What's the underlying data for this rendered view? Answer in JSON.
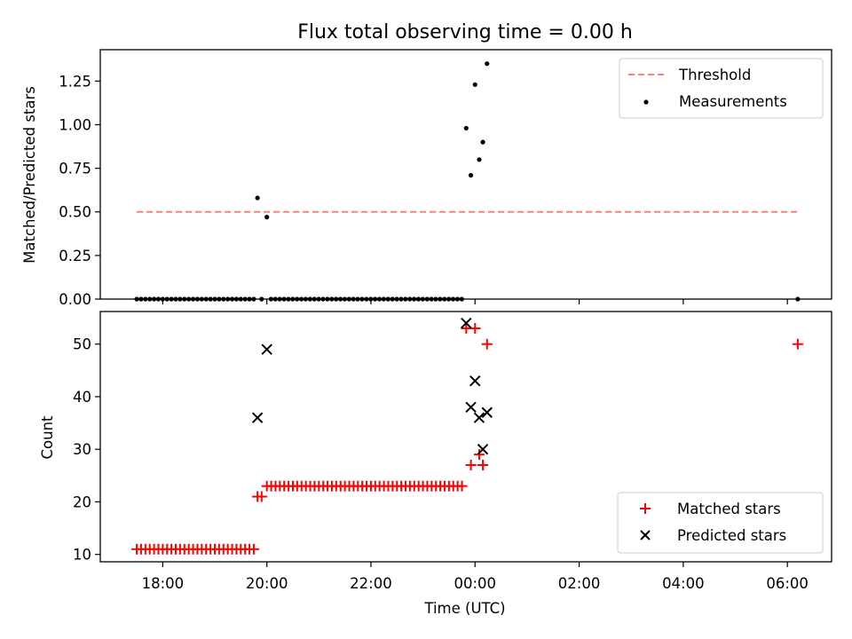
{
  "chart_data": [
    {
      "type": "scatter",
      "title": "Flux total observing time = 0.00 h",
      "xlabel": "",
      "ylabel": "Matched/Predicted stars",
      "ylim": [
        0,
        1.43
      ],
      "yticks": [
        "0.00",
        "0.25",
        "0.50",
        "0.75",
        "1.00",
        "1.25"
      ],
      "ytick_values": [
        0,
        0.25,
        0.5,
        0.75,
        1.0,
        1.25
      ],
      "xlim_hours": [
        16.8,
        30.85
      ],
      "legend_position": "top-right",
      "threshold": {
        "name": "Threshold",
        "y": 0.5,
        "x_start": 17.5,
        "x_end": 30.2,
        "color": "#ff7f7f"
      },
      "series": [
        {
          "name": "Measurements",
          "color": "#000000",
          "points": [
            {
              "x": 19.82,
              "y": 0.58
            },
            {
              "x": 20.0,
              "y": 0.47
            },
            {
              "x": 23.83,
              "y": 0.98
            },
            {
              "x": 23.92,
              "y": 0.71
            },
            {
              "x": 24.0,
              "y": 1.23
            },
            {
              "x": 24.08,
              "y": 0.8
            },
            {
              "x": 24.15,
              "y": 0.9
            },
            {
              "x": 24.23,
              "y": 1.35
            },
            {
              "x": 30.2,
              "y": 0.0
            }
          ],
          "zero_runs": [
            {
              "start": 17.5,
              "end": 19.75,
              "step": 0.0833
            },
            {
              "start": 19.9,
              "end": 19.9,
              "step": 0.0833
            },
            {
              "start": 20.08,
              "end": 23.75,
              "step": 0.0833
            }
          ]
        }
      ]
    },
    {
      "type": "scatter",
      "title": "",
      "xlabel": "Time (UTC)",
      "ylabel": "Count",
      "ylim": [
        8.6,
        56.2
      ],
      "yticks": [
        "10",
        "20",
        "30",
        "40",
        "50"
      ],
      "ytick_values": [
        10,
        20,
        30,
        40,
        50
      ],
      "xlim_hours": [
        16.8,
        30.85
      ],
      "xticks": [
        "18:00",
        "20:00",
        "22:00",
        "00:00",
        "02:00",
        "04:00",
        "06:00"
      ],
      "xtick_values": [
        18,
        20,
        22,
        24,
        26,
        28,
        30
      ],
      "legend_position": "bottom-right",
      "series": [
        {
          "name": "Matched stars",
          "color": "#ff0000",
          "marker": "plus",
          "points": [
            {
              "x": 19.82,
              "y": 21
            },
            {
              "x": 19.9,
              "y": 21
            },
            {
              "x": 23.83,
              "y": 53
            },
            {
              "x": 23.92,
              "y": 27
            },
            {
              "x": 24.0,
              "y": 53
            },
            {
              "x": 24.08,
              "y": 29
            },
            {
              "x": 24.15,
              "y": 27
            },
            {
              "x": 24.23,
              "y": 50
            },
            {
              "x": 30.2,
              "y": 50
            }
          ],
          "runs": [
            {
              "start": 17.5,
              "end": 19.75,
              "step": 0.0833,
              "y": 11
            },
            {
              "start": 20.0,
              "end": 23.75,
              "step": 0.0833,
              "y": 23
            }
          ]
        },
        {
          "name": "Predicted stars",
          "color": "#000000",
          "marker": "x",
          "points": [
            {
              "x": 19.82,
              "y": 36
            },
            {
              "x": 20.0,
              "y": 49
            },
            {
              "x": 23.83,
              "y": 54
            },
            {
              "x": 23.92,
              "y": 38
            },
            {
              "x": 24.0,
              "y": 43
            },
            {
              "x": 24.08,
              "y": 36
            },
            {
              "x": 24.15,
              "y": 30
            },
            {
              "x": 24.23,
              "y": 37
            }
          ]
        }
      ]
    }
  ]
}
